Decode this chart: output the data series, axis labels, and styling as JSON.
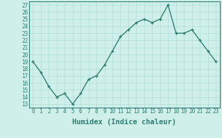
{
  "x": [
    0,
    1,
    2,
    3,
    4,
    5,
    6,
    7,
    8,
    9,
    10,
    11,
    12,
    13,
    14,
    15,
    16,
    17,
    18,
    19,
    20,
    21,
    22,
    23
  ],
  "y": [
    19,
    17.5,
    15.5,
    14,
    14.5,
    13,
    14.5,
    16.5,
    17,
    18.5,
    20.5,
    22.5,
    23.5,
    24.5,
    25,
    24.5,
    25,
    27,
    23,
    23,
    23.5,
    22,
    20.5,
    19
  ],
  "line_color": "#2e7d6e",
  "marker_color": "#2e7d6e",
  "bg_color": "#cff0ea",
  "grid_color": "#b0ddd6",
  "xlabel": "Humidex (Indice chaleur)",
  "xlim": [
    -0.5,
    23.5
  ],
  "ylim": [
    12.5,
    27.5
  ],
  "yticks": [
    13,
    14,
    15,
    16,
    17,
    18,
    19,
    20,
    21,
    22,
    23,
    24,
    25,
    26,
    27
  ],
  "xticks": [
    0,
    1,
    2,
    3,
    4,
    5,
    6,
    7,
    8,
    9,
    10,
    11,
    12,
    13,
    14,
    15,
    16,
    17,
    18,
    19,
    20,
    21,
    22,
    23
  ],
  "tick_label_fontsize": 5.5,
  "xlabel_fontsize": 7.5,
  "tick_color": "#2e7d6e",
  "axis_color": "#2e7d6e",
  "linewidth": 1.0,
  "markersize": 3.0
}
